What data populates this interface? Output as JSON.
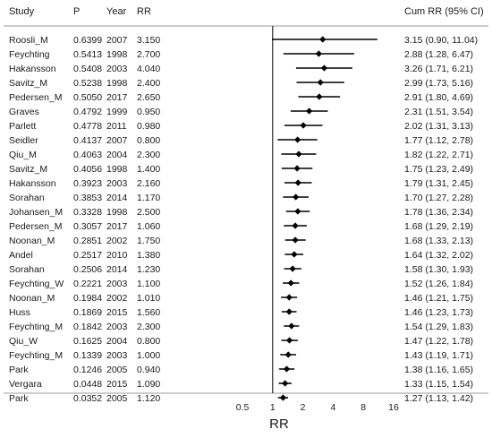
{
  "chart_data": {
    "type": "forest",
    "headers": {
      "study": "Study",
      "p": "P",
      "year": "Year",
      "rr": "RR",
      "cum": "Cum RR (95% CI)"
    },
    "xlabel": "RR",
    "x_scale": "log2",
    "xlim": [
      0.5,
      16
    ],
    "x_ticks": [
      {
        "value": 0.5,
        "label": "0.5"
      },
      {
        "value": 1,
        "label": "1"
      },
      {
        "value": 2,
        "label": "2"
      },
      {
        "value": 4,
        "label": "4"
      },
      {
        "value": 8,
        "label": "8"
      },
      {
        "value": 16,
        "label": "16"
      }
    ],
    "reference_line": 1,
    "rows": [
      {
        "study": "Roosli_M",
        "p": "0.6399",
        "year": "2007",
        "rr": "3.150",
        "est": 3.15,
        "lo": 0.9,
        "hi": 11.04,
        "cum": "3.15 (0.90, 11.04)"
      },
      {
        "study": "Feychting",
        "p": "0.5413",
        "year": "1998",
        "rr": "2.700",
        "est": 2.88,
        "lo": 1.28,
        "hi": 6.47,
        "cum": "2.88 (1.28, 6.47)"
      },
      {
        "study": "Hakansson",
        "p": "0.5408",
        "year": "2003",
        "rr": "4.040",
        "est": 3.26,
        "lo": 1.71,
        "hi": 6.21,
        "cum": "3.26 (1.71, 6.21)"
      },
      {
        "study": "Savitz_M",
        "p": "0.5238",
        "year": "1998",
        "rr": "2.400",
        "est": 2.99,
        "lo": 1.73,
        "hi": 5.16,
        "cum": "2.99 (1.73, 5.16)"
      },
      {
        "study": "Pedersen_M",
        "p": "0.5050",
        "year": "2017",
        "rr": "2.650",
        "est": 2.91,
        "lo": 1.8,
        "hi": 4.69,
        "cum": "2.91 (1.80, 4.69)"
      },
      {
        "study": "Graves",
        "p": "0.4792",
        "year": "1999",
        "rr": "0.950",
        "est": 2.31,
        "lo": 1.51,
        "hi": 3.54,
        "cum": "2.31 (1.51, 3.54)"
      },
      {
        "study": "Parlett",
        "p": "0.4778",
        "year": "2011",
        "rr": "0.980",
        "est": 2.02,
        "lo": 1.31,
        "hi": 3.13,
        "cum": "2.02 (1.31, 3.13)"
      },
      {
        "study": "Seidler",
        "p": "0.4137",
        "year": "2007",
        "rr": "0.800",
        "est": 1.77,
        "lo": 1.12,
        "hi": 2.78,
        "cum": "1.77 (1.12, 2.78)"
      },
      {
        "study": "Qiu_M",
        "p": "0.4063",
        "year": "2004",
        "rr": "2.300",
        "est": 1.82,
        "lo": 1.22,
        "hi": 2.71,
        "cum": "1.82 (1.22, 2.71)"
      },
      {
        "study": "Savitz_M",
        "p": "0.4056",
        "year": "1998",
        "rr": "1.400",
        "est": 1.75,
        "lo": 1.23,
        "hi": 2.49,
        "cum": "1.75 (1.23, 2.49)"
      },
      {
        "study": "Hakansson",
        "p": "0.3923",
        "year": "2003",
        "rr": "2.160",
        "est": 1.79,
        "lo": 1.31,
        "hi": 2.45,
        "cum": "1.79 (1.31, 2.45)"
      },
      {
        "study": "Sorahan",
        "p": "0.3853",
        "year": "2014",
        "rr": "1.170",
        "est": 1.7,
        "lo": 1.27,
        "hi": 2.28,
        "cum": "1.70 (1.27, 2.28)"
      },
      {
        "study": "Johansen_M",
        "p": "0.3328",
        "year": "1998",
        "rr": "2.500",
        "est": 1.78,
        "lo": 1.36,
        "hi": 2.34,
        "cum": "1.78 (1.36, 2.34)"
      },
      {
        "study": "Pedersen_M",
        "p": "0.3057",
        "year": "2017",
        "rr": "1.060",
        "est": 1.68,
        "lo": 1.29,
        "hi": 2.19,
        "cum": "1.68 (1.29, 2.19)"
      },
      {
        "study": "Noonan_M",
        "p": "0.2851",
        "year": "2002",
        "rr": "1.750",
        "est": 1.68,
        "lo": 1.33,
        "hi": 2.13,
        "cum": "1.68 (1.33, 2.13)"
      },
      {
        "study": "Andel",
        "p": "0.2517",
        "year": "2010",
        "rr": "1.380",
        "est": 1.64,
        "lo": 1.32,
        "hi": 2.02,
        "cum": "1.64 (1.32, 2.02)"
      },
      {
        "study": "Sorahan",
        "p": "0.2506",
        "year": "2014",
        "rr": "1.230",
        "est": 1.58,
        "lo": 1.3,
        "hi": 1.93,
        "cum": "1.58 (1.30, 1.93)"
      },
      {
        "study": "Feychting_W",
        "p": "0.2221",
        "year": "2003",
        "rr": "1.100",
        "est": 1.52,
        "lo": 1.26,
        "hi": 1.84,
        "cum": "1.52 (1.26, 1.84)"
      },
      {
        "study": "Noonan_M",
        "p": "0.1984",
        "year": "2002",
        "rr": "1.010",
        "est": 1.46,
        "lo": 1.21,
        "hi": 1.75,
        "cum": "1.46 (1.21, 1.75)"
      },
      {
        "study": "Huss",
        "p": "0.1869",
        "year": "2015",
        "rr": "1.560",
        "est": 1.46,
        "lo": 1.23,
        "hi": 1.73,
        "cum": "1.46 (1.23, 1.73)"
      },
      {
        "study": "Feychting_M",
        "p": "0.1842",
        "year": "2003",
        "rr": "2.300",
        "est": 1.54,
        "lo": 1.29,
        "hi": 1.83,
        "cum": "1.54 (1.29, 1.83)"
      },
      {
        "study": "Qiu_W",
        "p": "0.1625",
        "year": "2004",
        "rr": "0.800",
        "est": 1.47,
        "lo": 1.22,
        "hi": 1.78,
        "cum": "1.47 (1.22, 1.78)"
      },
      {
        "study": "Feychting_M",
        "p": "0.1339",
        "year": "2003",
        "rr": "1.000",
        "est": 1.43,
        "lo": 1.19,
        "hi": 1.71,
        "cum": "1.43 (1.19, 1.71)"
      },
      {
        "study": "Park",
        "p": "0.1246",
        "year": "2005",
        "rr": "0.940",
        "est": 1.38,
        "lo": 1.16,
        "hi": 1.65,
        "cum": "1.38 (1.16, 1.65)"
      },
      {
        "study": "Vergara",
        "p": "0.0448",
        "year": "2015",
        "rr": "1.090",
        "est": 1.33,
        "lo": 1.15,
        "hi": 1.54,
        "cum": "1.33 (1.15, 1.54)"
      },
      {
        "study": "Park",
        "p": "0.0352",
        "year": "2005",
        "rr": "1.120",
        "est": 1.27,
        "lo": 1.13,
        "hi": 1.42,
        "cum": "1.27 (1.13, 1.42)"
      }
    ],
    "grid": false,
    "legend": "none"
  }
}
